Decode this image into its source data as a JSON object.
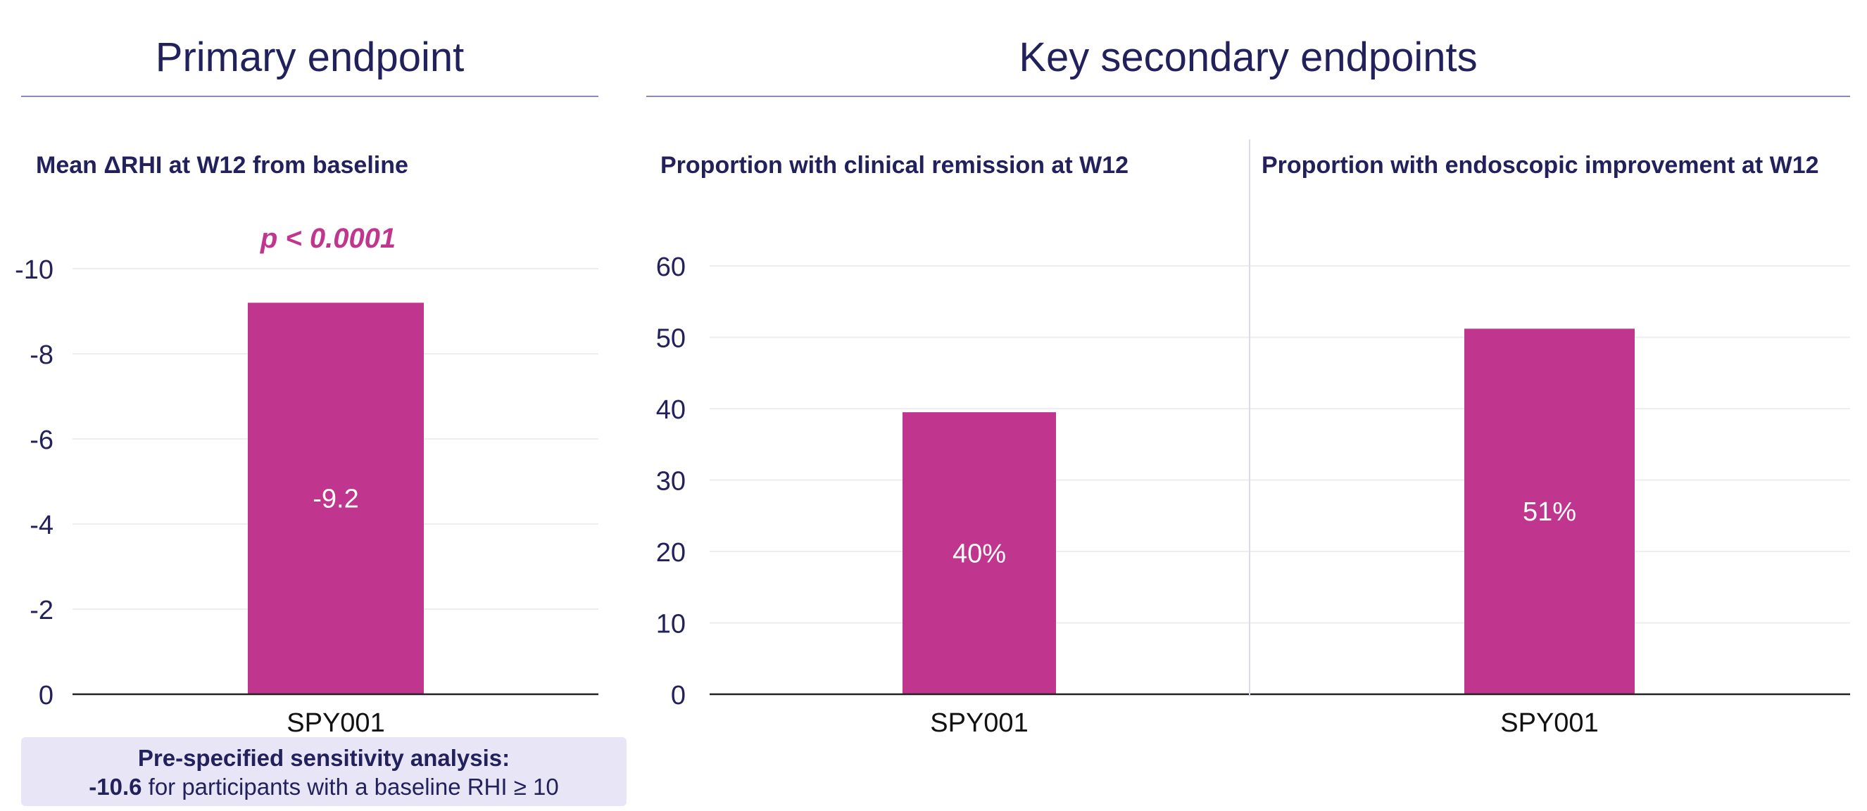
{
  "primary_section": {
    "title": "Primary endpoint"
  },
  "secondary_section": {
    "title": "Key secondary endpoints"
  },
  "sensitivity": {
    "title": "Pre-specified sensitivity analysis:",
    "value": "-10.6",
    "text": " for participants with a baseline RHI ≥ 10"
  },
  "colors": {
    "bar": "#c0368f",
    "text": "#23215c",
    "grid": "#ededf2",
    "axis": "#222222"
  },
  "chart_data": [
    {
      "type": "bar",
      "title": "Mean ΔRHI at W12 from baseline",
      "annotation": "p < 0.0001",
      "categories": [
        "SPY001"
      ],
      "values": [
        -9.2
      ],
      "labels": [
        "-9.2"
      ],
      "ylim": [
        0,
        -10
      ],
      "ticks": [
        0,
        -2,
        -4,
        -6,
        -8,
        -10
      ],
      "tick_labels": [
        "0",
        "-2",
        "-4",
        "-6",
        "-8",
        "-10"
      ],
      "grid": true
    },
    {
      "type": "bar",
      "title": "Proportion with clinical remission at W12",
      "categories": [
        "SPY001"
      ],
      "values": [
        39.5
      ],
      "labels": [
        "40%"
      ],
      "ylim": [
        0,
        60
      ],
      "ticks": [
        0,
        10,
        20,
        30,
        40,
        50,
        60
      ],
      "tick_labels": [
        "0",
        "10",
        "20",
        "30",
        "40",
        "50",
        "60"
      ],
      "grid": true
    },
    {
      "type": "bar",
      "title": "Proportion with endoscopic improvement at W12",
      "categories": [
        "SPY001"
      ],
      "values": [
        51.2
      ],
      "labels": [
        "51%"
      ],
      "ylim": [
        0,
        60
      ],
      "grid": true
    }
  ]
}
